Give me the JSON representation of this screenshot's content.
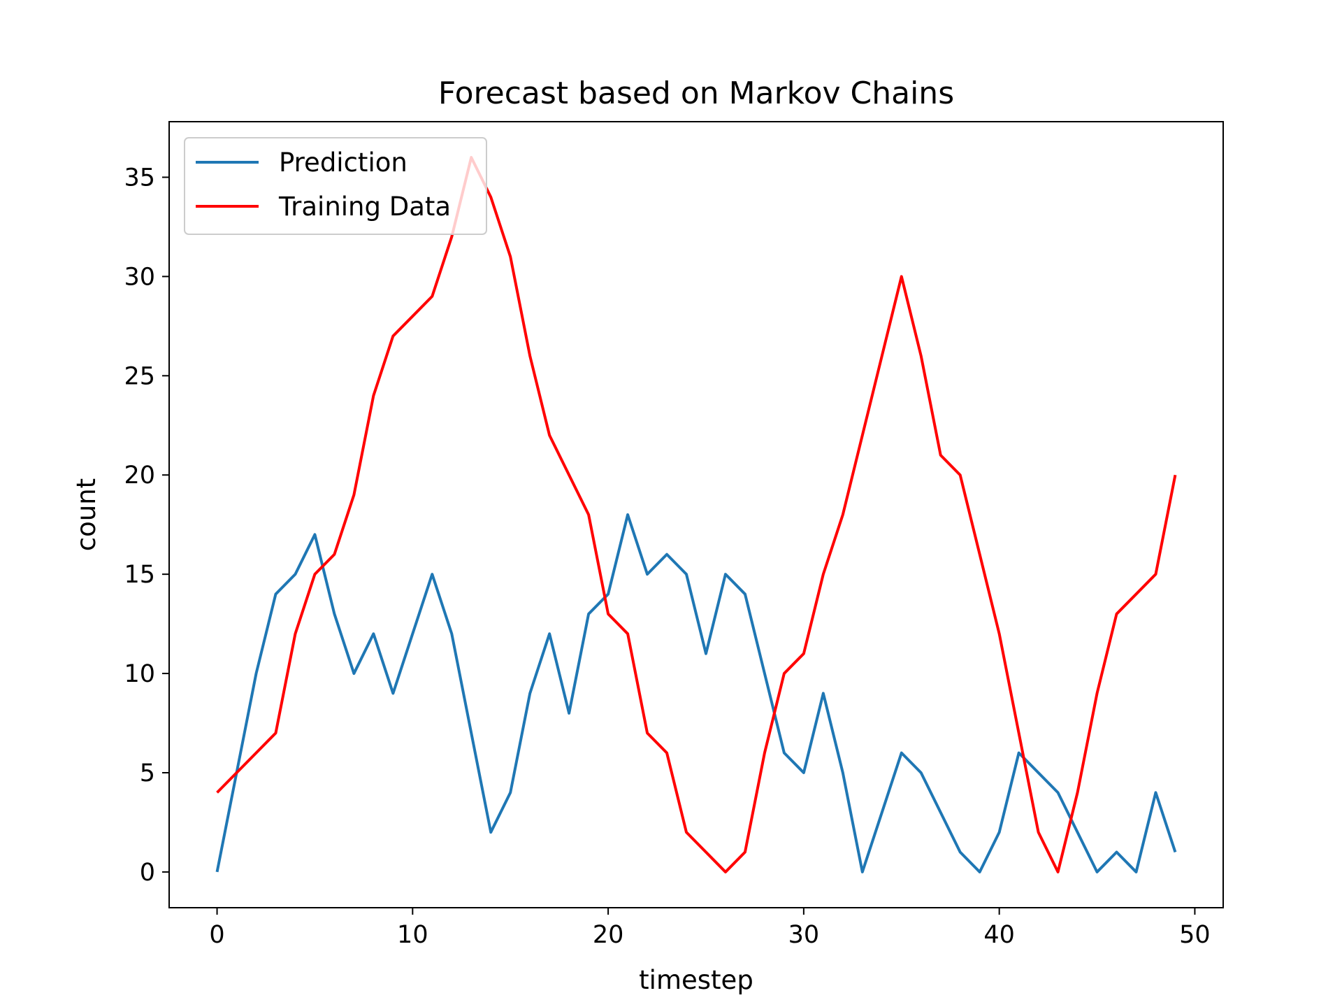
{
  "chart_data": {
    "type": "line",
    "title": "Forecast based on Markov Chains",
    "xlabel": "timestep",
    "ylabel": "count",
    "xlim": [
      -2.45,
      51.45
    ],
    "ylim": [
      -1.8,
      37.8
    ],
    "xticks": [
      0,
      10,
      20,
      30,
      40,
      50
    ],
    "yticks": [
      0,
      5,
      10,
      15,
      20,
      25,
      30,
      35
    ],
    "grid": false,
    "legend": "upper left",
    "x": [
      0,
      1,
      2,
      3,
      4,
      5,
      6,
      7,
      8,
      9,
      10,
      11,
      12,
      13,
      14,
      15,
      16,
      17,
      18,
      19,
      20,
      21,
      22,
      23,
      24,
      25,
      26,
      27,
      28,
      29,
      30,
      31,
      32,
      33,
      34,
      35,
      36,
      37,
      38,
      39,
      40,
      41,
      42,
      43,
      44,
      45,
      46,
      47,
      48,
      49
    ],
    "series": [
      {
        "name": "Prediction",
        "color": "#1f77b4",
        "values": [
          0,
          5,
          10,
          14,
          15,
          17,
          13,
          10,
          12,
          9,
          12,
          15,
          12,
          7,
          2,
          4,
          9,
          12,
          8,
          13,
          14,
          18,
          15,
          16,
          15,
          11,
          15,
          14,
          10,
          6,
          5,
          9,
          5,
          0,
          3,
          6,
          5,
          3,
          1,
          0,
          2,
          6,
          5,
          4,
          2,
          0,
          1,
          0,
          4,
          1
        ]
      },
      {
        "name": "Training Data",
        "color": "#ff0000",
        "values": [
          4,
          5,
          6,
          7,
          12,
          15,
          16,
          19,
          24,
          27,
          28,
          29,
          32,
          36,
          34,
          31,
          26,
          22,
          20,
          18,
          13,
          12,
          7,
          6,
          2,
          1,
          0,
          1,
          6,
          10,
          11,
          15,
          18,
          22,
          26,
          30,
          26,
          21,
          20,
          16,
          12,
          7,
          2,
          0,
          4,
          9,
          13,
          14,
          15,
          20
        ]
      }
    ]
  }
}
